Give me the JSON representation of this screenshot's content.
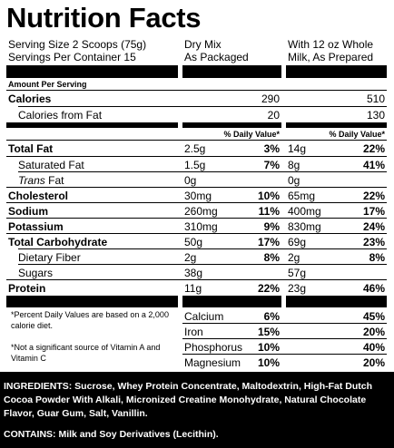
{
  "title": "Nutrition Facts",
  "serving_size": "Serving Size 2 Scoops (75g)",
  "servings_per_container": "Servings Per Container 15",
  "col_dry": {
    "line1": "Dry Mix",
    "line2": "As Packaged"
  },
  "col_milk": {
    "line1": "With 12 oz Whole",
    "line2": "Milk, As Prepared"
  },
  "amount_per_serving": "Amount Per Serving",
  "calories": {
    "label": "Calories",
    "dry": "290",
    "milk": "510"
  },
  "calories_fat": {
    "label": "Calories from Fat",
    "dry": "20",
    "milk": "130"
  },
  "dv_header": "% Daily Value*",
  "nutrients": [
    {
      "label": "Total Fat",
      "dry_amt": "2.5g",
      "dry_dv": "3%",
      "milk_amt": "14g",
      "milk_dv": "22%"
    },
    {
      "label": "Saturated Fat",
      "dry_amt": "1.5g",
      "dry_dv": "7%",
      "milk_amt": "8g",
      "milk_dv": "41%"
    },
    {
      "label": "Trans",
      "label_suffix": " Fat",
      "dry_amt": "0g",
      "dry_dv": "",
      "milk_amt": "0g",
      "milk_dv": ""
    },
    {
      "label": "Cholesterol",
      "dry_amt": "30mg",
      "dry_dv": "10%",
      "milk_amt": "65mg",
      "milk_dv": "22%"
    },
    {
      "label": "Sodium",
      "dry_amt": "260mg",
      "dry_dv": "11%",
      "milk_amt": "400mg",
      "milk_dv": "17%"
    },
    {
      "label": "Potassium",
      "dry_amt": "310mg",
      "dry_dv": "9%",
      "milk_amt": "830mg",
      "milk_dv": "24%"
    },
    {
      "label": "Total Carbohydrate",
      "dry_amt": "50g",
      "dry_dv": "17%",
      "milk_amt": "69g",
      "milk_dv": "23%"
    },
    {
      "label": "Dietary Fiber",
      "dry_amt": "2g",
      "dry_dv": "8%",
      "milk_amt": "2g",
      "milk_dv": "8%"
    },
    {
      "label": "Sugars",
      "dry_amt": "38g",
      "dry_dv": "",
      "milk_amt": "57g",
      "milk_dv": ""
    },
    {
      "label": "Protein",
      "dry_amt": "11g",
      "dry_dv": "22%",
      "milk_amt": "23g",
      "milk_dv": "46%"
    }
  ],
  "footnote1": "*Percent Daily Values are based on a 2,000 calorie diet.",
  "footnote2": "*Not a significant source of Vitamin A and Vitamin C",
  "minerals": [
    {
      "label": "Calcium",
      "dry_dv": "6%",
      "milk_dv": "45%"
    },
    {
      "label": "Iron",
      "dry_dv": "15%",
      "milk_dv": "20%"
    },
    {
      "label": "Phosphorus",
      "dry_dv": "10%",
      "milk_dv": "40%"
    },
    {
      "label": "Magnesium",
      "dry_dv": "10%",
      "milk_dv": "20%"
    }
  ],
  "ingredients": "INGREDIENTS: Sucrose, Whey Protein Concentrate, Maltodextrin, High-Fat Dutch Cocoa Powder With Alkali, Micronized Creatine Monohydrate, Natural Chocolate Flavor, Guar Gum, Salt, Vanillin.",
  "contains": "CONTAINS: Milk and Soy Derivatives (Lecithin)."
}
